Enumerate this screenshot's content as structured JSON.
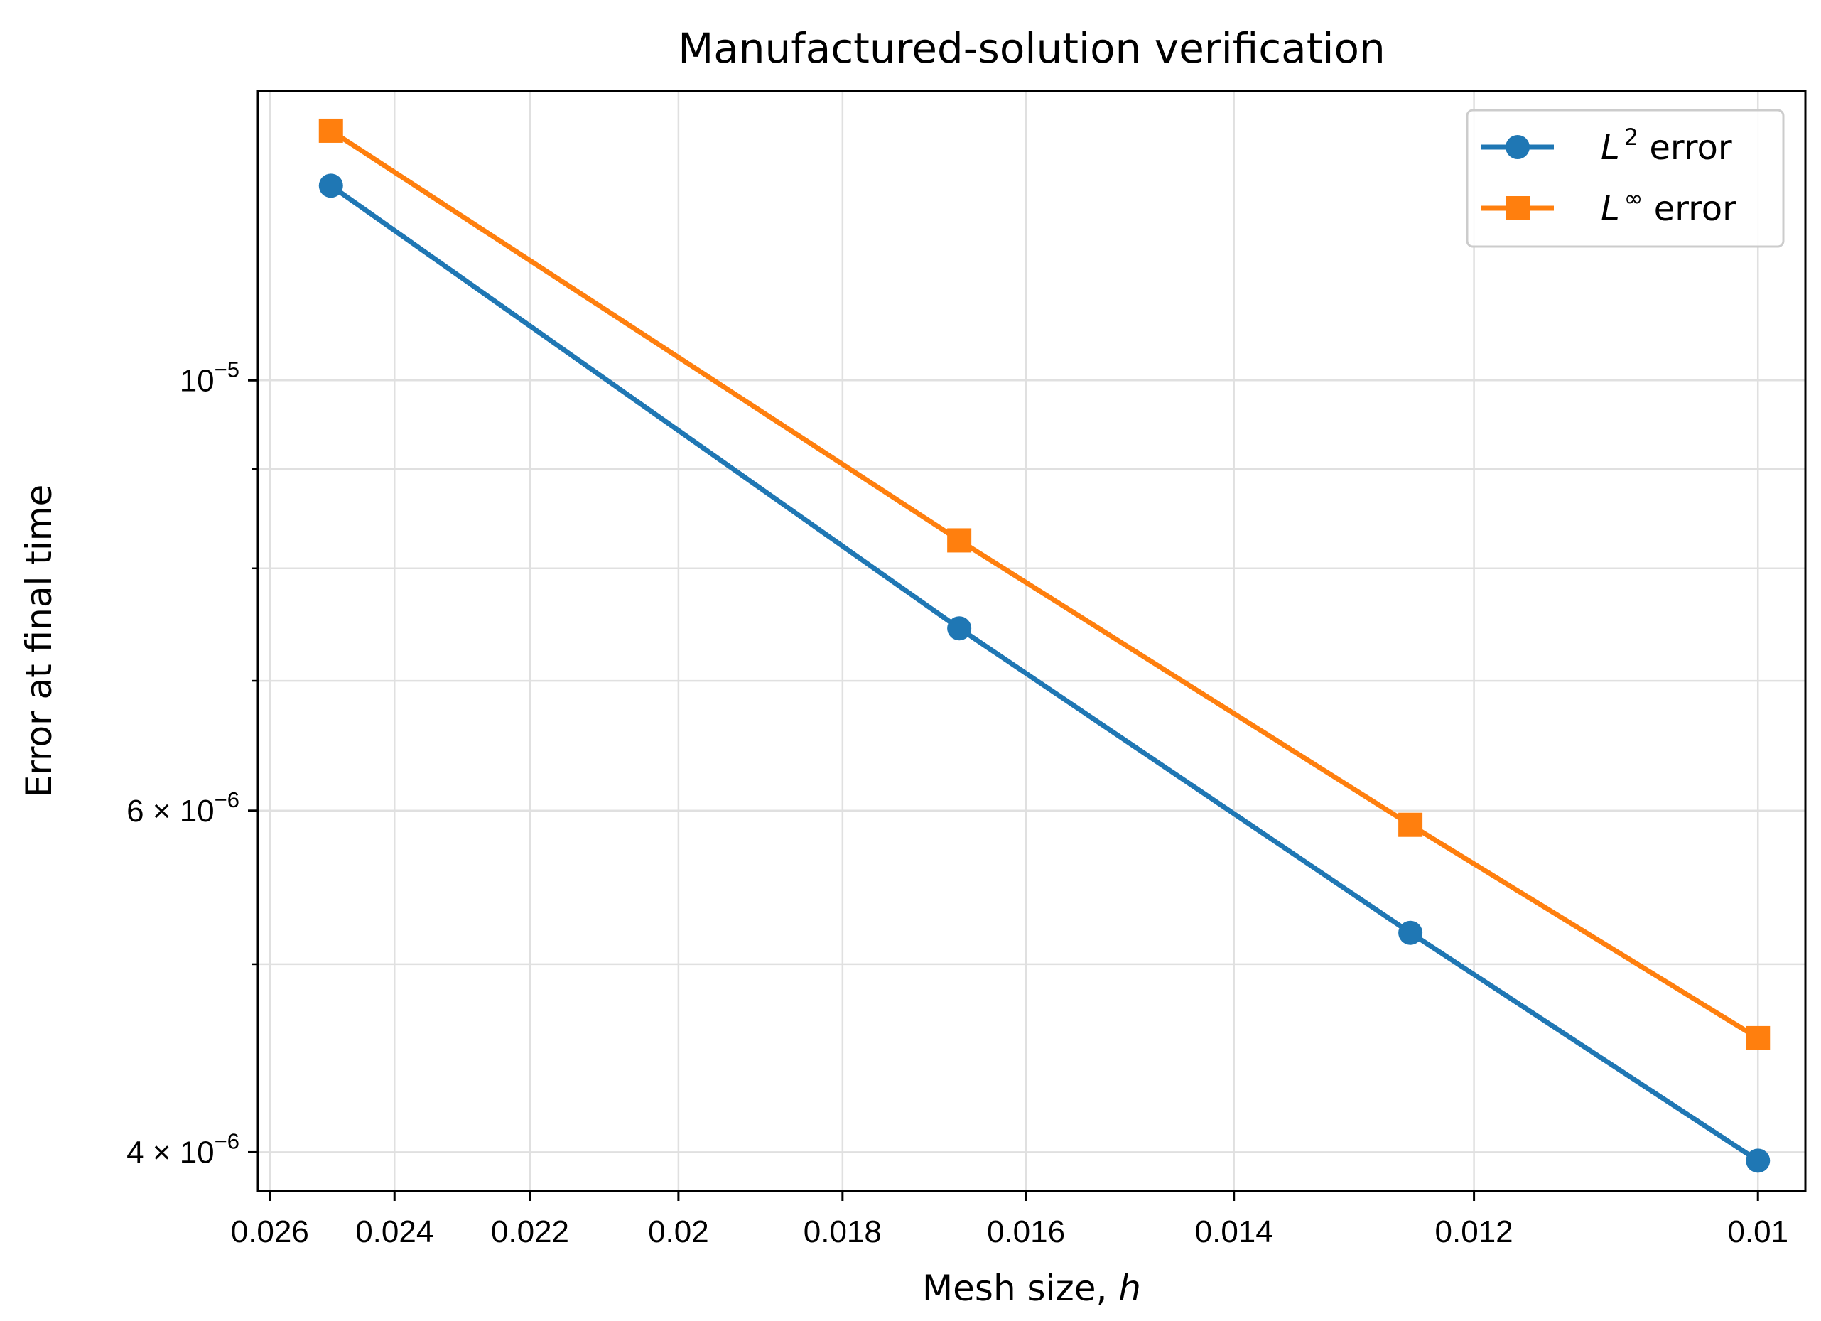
{
  "chart_data": {
    "type": "line",
    "title": "Manufactured-solution verification",
    "xlabel_main": "Mesh size, ",
    "xlabel_var": "h",
    "ylabel": "Error at final time",
    "x_scale": "log",
    "x_reversed": true,
    "y_scale": "log",
    "xlim": [
      0.0262,
      0.0097
    ],
    "ylim": [
      3.82e-06,
      1.41e-05
    ],
    "x_ticks": [
      {
        "value": 0.026,
        "label": "0.026"
      },
      {
        "value": 0.024,
        "label": "0.024"
      },
      {
        "value": 0.022,
        "label": "0.022"
      },
      {
        "value": 0.02,
        "label": "0.02"
      },
      {
        "value": 0.018,
        "label": "0.018"
      },
      {
        "value": 0.016,
        "label": "0.016"
      },
      {
        "value": 0.014,
        "label": "0.014"
      },
      {
        "value": 0.012,
        "label": "0.012"
      },
      {
        "value": 0.01,
        "label": "0.01"
      }
    ],
    "y_ticks_major": [
      {
        "value": 1e-05,
        "base": "10",
        "exp": "−5"
      },
      {
        "value": 6e-06,
        "base": "6 × 10",
        "exp": "−6"
      },
      {
        "value": 4e-06,
        "base": "4 × 10",
        "exp": "−6"
      }
    ],
    "y_gridlines": [
      4e-06,
      5e-06,
      6e-06,
      7e-06,
      8e-06,
      9e-06,
      1e-05
    ],
    "grid": true,
    "legend_position": "top-right",
    "x": [
      0.025,
      0.0167,
      0.0125,
      0.01
    ],
    "series": [
      {
        "name_main": "L",
        "name_sup": "2",
        "name_rest": " error",
        "color": "#1f77b4",
        "marker": "circle",
        "values": [
          1.26e-05,
          7.45e-06,
          5.19e-06,
          3.96e-06
        ]
      },
      {
        "name_main": "L",
        "name_sup": "∞",
        "name_rest": " error",
        "color": "#ff7f0e",
        "marker": "square",
        "values": [
          1.345e-05,
          8.27e-06,
          5.9e-06,
          4.58e-06
        ]
      }
    ]
  }
}
